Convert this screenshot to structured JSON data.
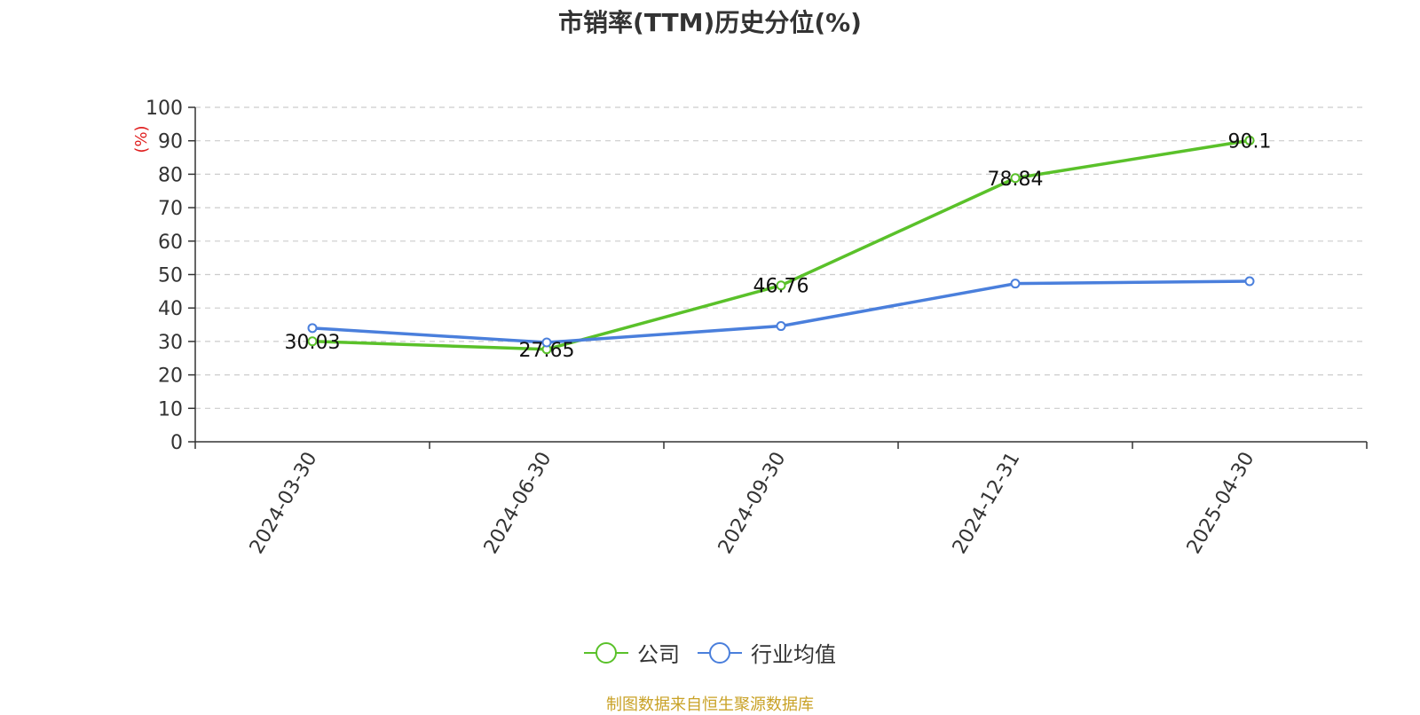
{
  "chart_data": {
    "type": "line",
    "title": "市销率(TTM)历史分位(%)",
    "ylabel": "(%)",
    "xlabel": "",
    "categories": [
      "2024-03-30",
      "2024-06-30",
      "2024-09-30",
      "2024-12-31",
      "2025-04-30"
    ],
    "ylim": [
      0,
      100
    ],
    "yticks": [
      0,
      10,
      20,
      30,
      40,
      50,
      60,
      70,
      80,
      90,
      100
    ],
    "grid": true,
    "legend_position": "bottom",
    "series": [
      {
        "name": "公司",
        "values": [
          30.03,
          27.65,
          46.76,
          78.84,
          90.1
        ],
        "labels": [
          "30.03",
          "27.65",
          "46.76",
          "78.84",
          "90.1"
        ],
        "color": "#5ac12a"
      },
      {
        "name": "行业均值",
        "values": [
          34.0,
          29.7,
          34.6,
          47.3,
          48.0
        ],
        "color": "#4a7fdc"
      }
    ]
  },
  "source_text": "制图数据来自恒生聚源数据库",
  "colors": {
    "axis": "#333333",
    "grid": "#cccccc",
    "ylabel": "#e02020",
    "source": "#c9a227"
  }
}
